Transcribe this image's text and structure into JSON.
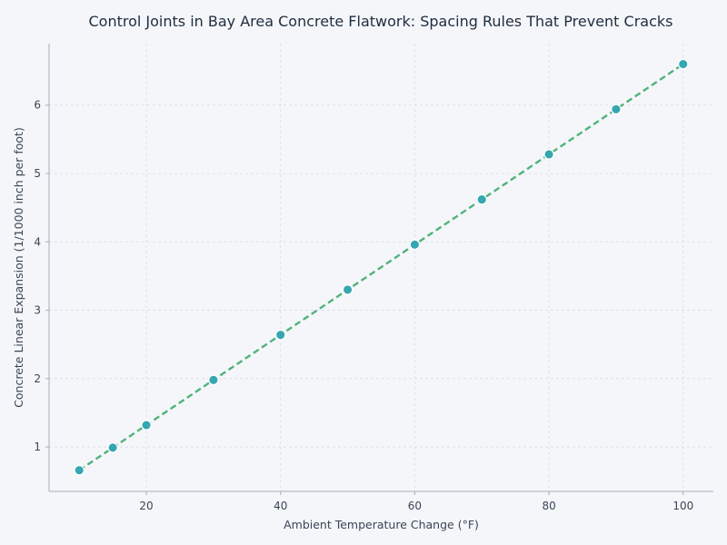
{
  "chart_data": {
    "type": "scatter",
    "title": "Control Joints in Bay Area Concrete Flatwork: Spacing Rules That Prevent Cracks",
    "xlabel": "Ambient Temperature Change (°F)",
    "ylabel": "Concrete Linear Expansion (1/1000 inch per foot)",
    "xlim": [
      5.5,
      104.5
    ],
    "ylim": [
      0.35,
      6.9
    ],
    "xticks": [
      20,
      40,
      60,
      80,
      100
    ],
    "yticks": [
      1,
      2,
      3,
      4,
      5,
      6
    ],
    "grid": true,
    "series": [
      {
        "x": [
          10,
          15,
          20,
          30,
          40,
          50,
          60,
          70,
          80,
          90,
          100
        ],
        "y": [
          0.66,
          0.99,
          1.32,
          1.98,
          2.64,
          3.3,
          3.96,
          4.62,
          5.28,
          5.94,
          6.6
        ],
        "point_color": "#35a7b1",
        "line_color": "#52b27a"
      }
    ]
  }
}
